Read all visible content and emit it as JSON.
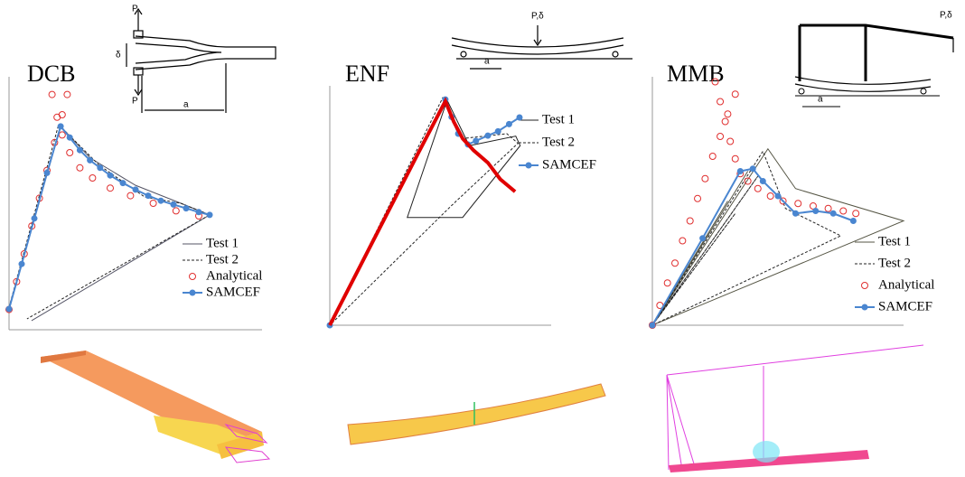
{
  "chart_data": [
    {
      "type": "line",
      "title": "DCB",
      "xlim": [
        0,
        100
      ],
      "ylim": [
        0,
        100
      ],
      "series": [
        {
          "name": "Test 1",
          "color": "#555566",
          "style": "solid",
          "x": [
            0,
            20.4,
            32.1,
            50,
            67.9,
            79.3,
            8.9
          ],
          "values": [
            8.2,
            80.4,
            67.9,
            57.1,
            50,
            45.4,
            3.6
          ]
        },
        {
          "name": "Test 2",
          "color": "#222222",
          "style": "dashed",
          "x": [
            0,
            19.6,
            35.7,
            53.6,
            67.9,
            79.3,
            7.1
          ],
          "values": [
            8.9,
            81.1,
            65,
            52.5,
            50,
            45.4,
            4.3
          ]
        },
        {
          "name": "Analytical",
          "color": "#e03030",
          "style": "none",
          "marker": "circle",
          "x": [
            0,
            3,
            6,
            9,
            12,
            15,
            18,
            21,
            23,
            17,
            19,
            21,
            24,
            28,
            33,
            40,
            48,
            57,
            66,
            75
          ],
          "values": [
            8,
            19,
            30,
            41,
            52,
            63,
            74,
            85,
            93,
            93,
            84,
            77,
            70,
            64,
            60,
            56,
            53,
            50,
            47,
            45
          ]
        },
        {
          "name": "SAMCEF",
          "color": "#4a86d0",
          "style": "solid",
          "marker": "dot",
          "x": [
            0,
            5,
            10,
            15,
            20.4,
            24,
            28,
            32,
            36,
            40,
            45,
            50,
            55,
            60,
            65,
            70,
            75,
            79.3
          ],
          "values": [
            8.2,
            26,
            44,
            62,
            80.4,
            76,
            71,
            67,
            64,
            61,
            58,
            55.4,
            53,
            51,
            49.5,
            48,
            46.5,
            45.4
          ]
        }
      ]
    },
    {
      "type": "line",
      "title": "ENF",
      "xlim": [
        0,
        100
      ],
      "ylim": [
        0,
        100
      ],
      "series": [
        {
          "name": "Test 1",
          "color": "#222222",
          "style": "solid",
          "x": [
            0,
            53,
            63,
            84,
            86,
            60,
            35,
            53,
            0
          ],
          "values": [
            0,
            94,
            75,
            79,
            75,
            45,
            45,
            94,
            0
          ]
        },
        {
          "name": "Test 2",
          "color": "#222222",
          "style": "dashed",
          "x": [
            0,
            51,
            60,
            80,
            85,
            55,
            0
          ],
          "values": [
            0,
            95,
            78,
            80,
            76,
            50,
            0
          ]
        },
        {
          "name": "SAMCEF",
          "color": "#4a86d0",
          "style": "solid",
          "marker": "dot",
          "x": [
            0,
            52.2,
            55,
            58,
            62.4,
            66,
            71.4,
            76,
            81,
            85.7
          ],
          "values": [
            0,
            94.3,
            87,
            80,
            75.5,
            77,
            79.2,
            81,
            84,
            86.8
          ]
        },
        {
          "color": "#e00000",
          "style": "thick",
          "x": [
            0,
            10,
            20,
            30,
            40,
            52.2,
            56,
            60,
            65,
            71.4,
            77,
            83.7
          ],
          "values": [
            0,
            18,
            36,
            54,
            72,
            93.6,
            85,
            78,
            73,
            67.9,
            61,
            55.8
          ]
        }
      ]
    },
    {
      "type": "line",
      "title": "MMB",
      "xlim": [
        0,
        100
      ],
      "ylim": [
        0,
        100
      ],
      "series": [
        {
          "name": "Test 1",
          "color": "#555544",
          "style": "solid",
          "x": [
            0,
            46,
            57,
            100,
            0,
            38,
            0,
            30,
            0
          ],
          "values": [
            0,
            71,
            55,
            42,
            0,
            62,
            0,
            50,
            0
          ]
        },
        {
          "name": "Test 2",
          "color": "#222222",
          "style": "dashed",
          "x": [
            0,
            44,
            53,
            75,
            0,
            42,
            0,
            33,
            0
          ],
          "values": [
            0,
            70,
            47,
            36,
            0,
            60,
            0,
            45,
            0
          ]
        },
        {
          "name": "Analytical",
          "color": "#e03030",
          "style": "none",
          "marker": "circle",
          "x": [
            0,
            3,
            6,
            9,
            12,
            15,
            18,
            21,
            24,
            27,
            30,
            33,
            25,
            27,
            29,
            31,
            33,
            35,
            38,
            42,
            47,
            52,
            58,
            64,
            70,
            76,
            81
          ],
          "values": [
            0,
            8,
            17,
            25,
            34,
            42,
            51,
            59,
            68,
            76,
            85,
            93,
            98,
            90,
            82,
            74,
            67,
            61,
            58,
            55,
            52,
            50,
            49,
            48,
            47,
            46,
            45
          ]
        },
        {
          "name": "SAMCEF",
          "color": "#4a86d0",
          "style": "solid",
          "marker": "dot",
          "x": [
            0,
            20,
            35,
            40,
            44,
            50,
            57,
            65,
            72,
            80
          ],
          "values": [
            0,
            35,
            62,
            63,
            58,
            52,
            45,
            46,
            45,
            42
          ]
        }
      ]
    }
  ],
  "schematics": {
    "dcb": {
      "load_top": "P",
      "load_bottom": "P",
      "opening": "δ",
      "crack_length": "a"
    },
    "enf": {
      "load": "P,δ",
      "span": "a"
    },
    "mmb": {
      "load": "P,δ",
      "span": "a"
    }
  }
}
